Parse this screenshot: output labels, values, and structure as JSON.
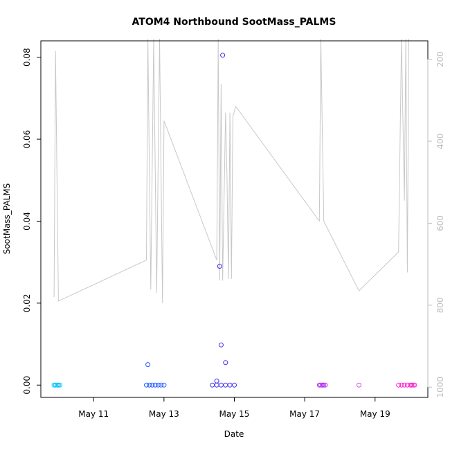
{
  "chart_data": {
    "type": "scatter",
    "title": "ATOM4 Northbound SootMass_PALMS",
    "xlabel": "Date",
    "ylabel": "SootMass_PALMS",
    "ylim": [
      -0.003,
      0.084
    ],
    "y_ticks": [
      "0.00",
      "0.02",
      "0.04",
      "0.06",
      "0.08"
    ],
    "y_tick_values": [
      0,
      0.02,
      0.04,
      0.06,
      0.08
    ],
    "x_range": [
      "2018-05-09 12:00",
      "2018-05-20 12:00"
    ],
    "x_ticks": [
      {
        "date": "2018-05-11",
        "label": "May 11"
      },
      {
        "date": "2018-05-13",
        "label": "May 13"
      },
      {
        "date": "2018-05-15",
        "label": "May 15"
      },
      {
        "date": "2018-05-17",
        "label": "May 17"
      },
      {
        "date": "2018-05-19",
        "label": "May 19"
      }
    ],
    "right_axis": {
      "range_inverted": [
        1025,
        155
      ],
      "ticks": [
        "200",
        "400",
        "600",
        "800",
        "1000"
      ],
      "tick_values": [
        200,
        400,
        600,
        800,
        1000
      ],
      "color": "#bebebe"
    },
    "grid": false,
    "series": [
      {
        "color": "#00bfff",
        "points": [
          [
            "2018-05-09 21:00",
            0
          ],
          [
            "2018-05-09 22:00",
            0
          ],
          [
            "2018-05-09 23:00",
            0
          ],
          [
            "2018-05-10 00:00",
            0
          ],
          [
            "2018-05-10 01:00",
            0
          ]
        ]
      },
      {
        "color": "#1e5aff",
        "points": [
          [
            "2018-05-12 13:00",
            0.005
          ],
          [
            "2018-05-12 12:00",
            0
          ],
          [
            "2018-05-12 14:00",
            0
          ],
          [
            "2018-05-12 16:00",
            0
          ],
          [
            "2018-05-12 18:00",
            0
          ],
          [
            "2018-05-12 20:00",
            0
          ],
          [
            "2018-05-12 22:00",
            0
          ],
          [
            "2018-05-13 00:00",
            0
          ]
        ]
      },
      {
        "color": "#3c28f0",
        "points": [
          [
            "2018-05-14 12:00",
            0.001
          ],
          [
            "2018-05-14 14:00",
            0.029
          ],
          [
            "2018-05-14 15:00",
            0.0098
          ],
          [
            "2018-05-14 16:00",
            0.0805
          ],
          [
            "2018-05-14 18:00",
            0.0055
          ],
          [
            "2018-05-14 09:00",
            0
          ],
          [
            "2018-05-14 12:00",
            0
          ],
          [
            "2018-05-14 15:00",
            0
          ],
          [
            "2018-05-14 18:00",
            0
          ],
          [
            "2018-05-14 21:00",
            0
          ],
          [
            "2018-05-15 00:00",
            0
          ]
        ]
      },
      {
        "color": "#b428f0",
        "points": [
          [
            "2018-05-17 10:00",
            0
          ],
          [
            "2018-05-17 11:00",
            0
          ],
          [
            "2018-05-17 12:00",
            0
          ],
          [
            "2018-05-17 13:00",
            0
          ],
          [
            "2018-05-17 14:00",
            0
          ]
        ]
      },
      {
        "color": "#d246e6",
        "points": [
          [
            "2018-05-18 13:00",
            0
          ]
        ]
      },
      {
        "color": "#ff1ecb",
        "points": [
          [
            "2018-05-19 16:00",
            0
          ],
          [
            "2018-05-19 18:00",
            0
          ],
          [
            "2018-05-19 20:00",
            0
          ],
          [
            "2018-05-19 22:00",
            0
          ],
          [
            "2018-05-20 00:00",
            0
          ],
          [
            "2018-05-20 01:00",
            0
          ],
          [
            "2018-05-20 02:00",
            0
          ],
          [
            "2018-05-20 03:00",
            0
          ]
        ]
      }
    ],
    "altitude_line": {
      "color": "#c8c8c8",
      "points": [
        [
          "2018-05-09 21:00",
          780
        ],
        [
          "2018-05-09 22:00",
          180
        ],
        [
          "2018-05-10 00:00",
          790
        ],
        [
          "2018-05-12 12:00",
          690
        ],
        [
          "2018-05-12 13:00",
          150
        ],
        [
          "2018-05-12 15:00",
          762
        ],
        [
          "2018-05-12 17:00",
          150
        ],
        [
          "2018-05-12 19:00",
          770
        ],
        [
          "2018-05-12 21:00",
          150
        ],
        [
          "2018-05-12 23:00",
          795
        ],
        [
          "2018-05-13 00:00",
          350
        ],
        [
          "2018-05-14 12:00",
          690
        ],
        [
          "2018-05-14 13:00",
          150
        ],
        [
          "2018-05-14 14:00",
          740
        ],
        [
          "2018-05-14 15:00",
          260
        ],
        [
          "2018-05-14 16:00",
          740
        ],
        [
          "2018-05-14 18:00",
          330
        ],
        [
          "2018-05-14 19:00",
          490
        ],
        [
          "2018-05-14 20:00",
          736
        ],
        [
          "2018-05-14 21:00",
          330
        ],
        [
          "2018-05-14 22:00",
          736
        ],
        [
          "2018-05-14 23:00",
          340
        ],
        [
          "2018-05-15 01:00",
          315
        ],
        [
          "2018-05-17 10:00",
          595
        ],
        [
          "2018-05-17 11:00",
          150
        ],
        [
          "2018-05-17 13:00",
          595
        ],
        [
          "2018-05-18 13:00",
          765
        ],
        [
          "2018-05-19 16:00",
          670
        ],
        [
          "2018-05-19 18:00",
          150
        ],
        [
          "2018-05-19 20:00",
          545
        ],
        [
          "2018-05-19 21:00",
          150
        ],
        [
          "2018-05-19 22:00",
          720
        ],
        [
          "2018-05-19 23:00",
          150
        ]
      ]
    }
  }
}
